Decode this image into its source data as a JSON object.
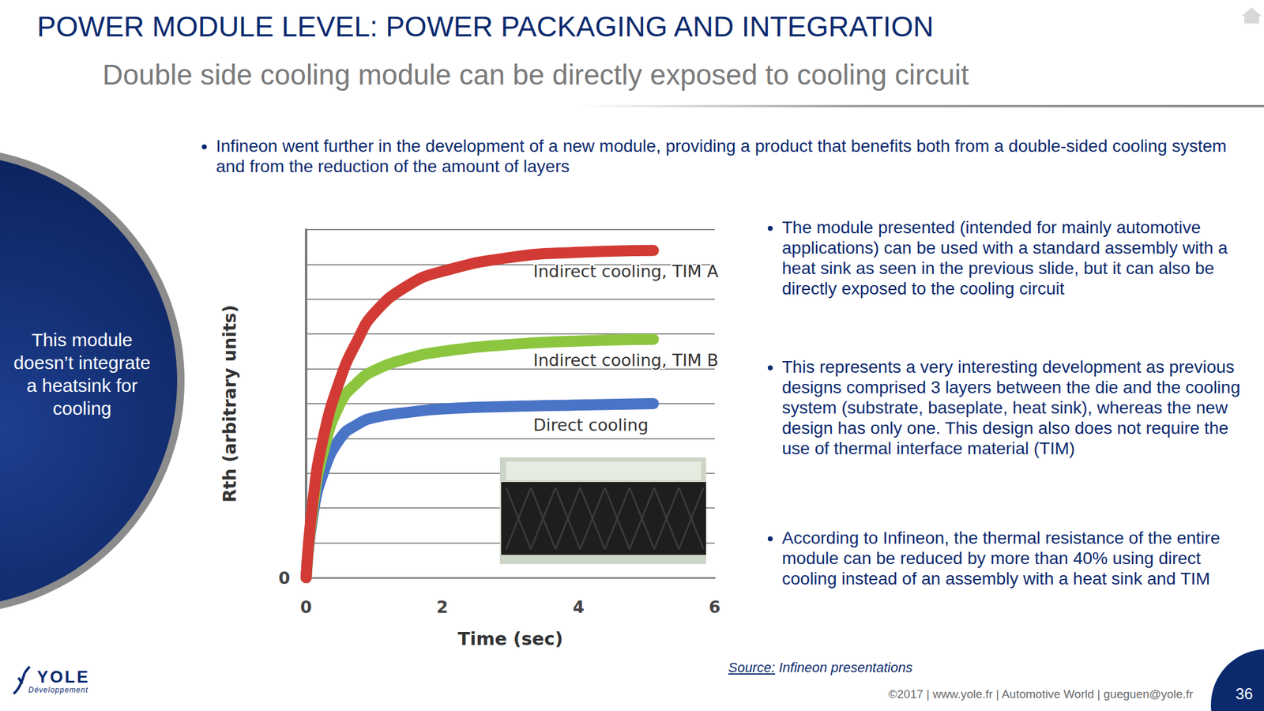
{
  "slide": {
    "title": "POWER MODULE LEVEL: POWER PACKAGING AND INTEGRATION",
    "subtitle": "Double side cooling module can be directly exposed to cooling circuit",
    "intro_bullet": "Infineon went further in the development of a new module, providing a product that benefits both from a double-sided cooling system and from the reduction of the amount of layers",
    "side_note": [
      "This module",
      "doesn’t integrate",
      "a heatsink for",
      "cooling"
    ],
    "bullets": [
      "The module presented (intended for mainly automotive applications) can be used with a standard assembly with a heat sink as seen in the previous slide, but it can also be directly exposed to the cooling circuit",
      "This represents a very interesting development as previous designs comprised 3 layers between the die and the cooling system (substrate, baseplate, heat sink), whereas the new design has only one. This design also does not require the use of thermal interface material (TIM)",
      "According to Infineon, the thermal resistance of the entire module can be reduced by more than 40% using direct cooling instead of an assembly with a heat sink and TIM"
    ],
    "source_label": "Source:",
    "source": "Infineon presentations",
    "footer": "©2017 | www.yole.fr | Automotive World | gueguen@yole.fr",
    "page": "36",
    "logo": {
      "name": "YOLE",
      "tagline": "Développement"
    }
  },
  "chart_data": {
    "type": "line",
    "x_label": "Time (sec)",
    "y_label": "Rth (arbitrary units)",
    "x": [
      0,
      0.1,
      0.25,
      0.5,
      0.75,
      1,
      1.5,
      2,
      3,
      4,
      5.1
    ],
    "series": [
      {
        "name": "Direct cooling",
        "color": "#4a74c6",
        "values": [
          0,
          1.8,
          3.0,
          4.0,
          4.4,
          4.6,
          4.75,
          4.85,
          4.92,
          4.96,
          5.0
        ]
      },
      {
        "name": "Indirect cooling, TIM B",
        "color": "#8cc63f",
        "values": [
          0,
          2.0,
          3.6,
          5.0,
          5.6,
          5.95,
          6.3,
          6.5,
          6.7,
          6.8,
          6.85
        ]
      },
      {
        "name": "Indirect cooling, TIM A",
        "color": "#d23b35",
        "values": [
          0,
          2.2,
          4.0,
          5.7,
          6.8,
          7.6,
          8.4,
          8.8,
          9.2,
          9.35,
          9.4
        ]
      }
    ],
    "xlim": [
      0,
      6
    ],
    "xticks": [
      0,
      2,
      4,
      6
    ],
    "ylim": [
      0,
      10
    ],
    "yticks": [
      0
    ],
    "ygrid": [
      0,
      1,
      2,
      3,
      4,
      5,
      6,
      7,
      8,
      9,
      10
    ],
    "grid": true
  }
}
